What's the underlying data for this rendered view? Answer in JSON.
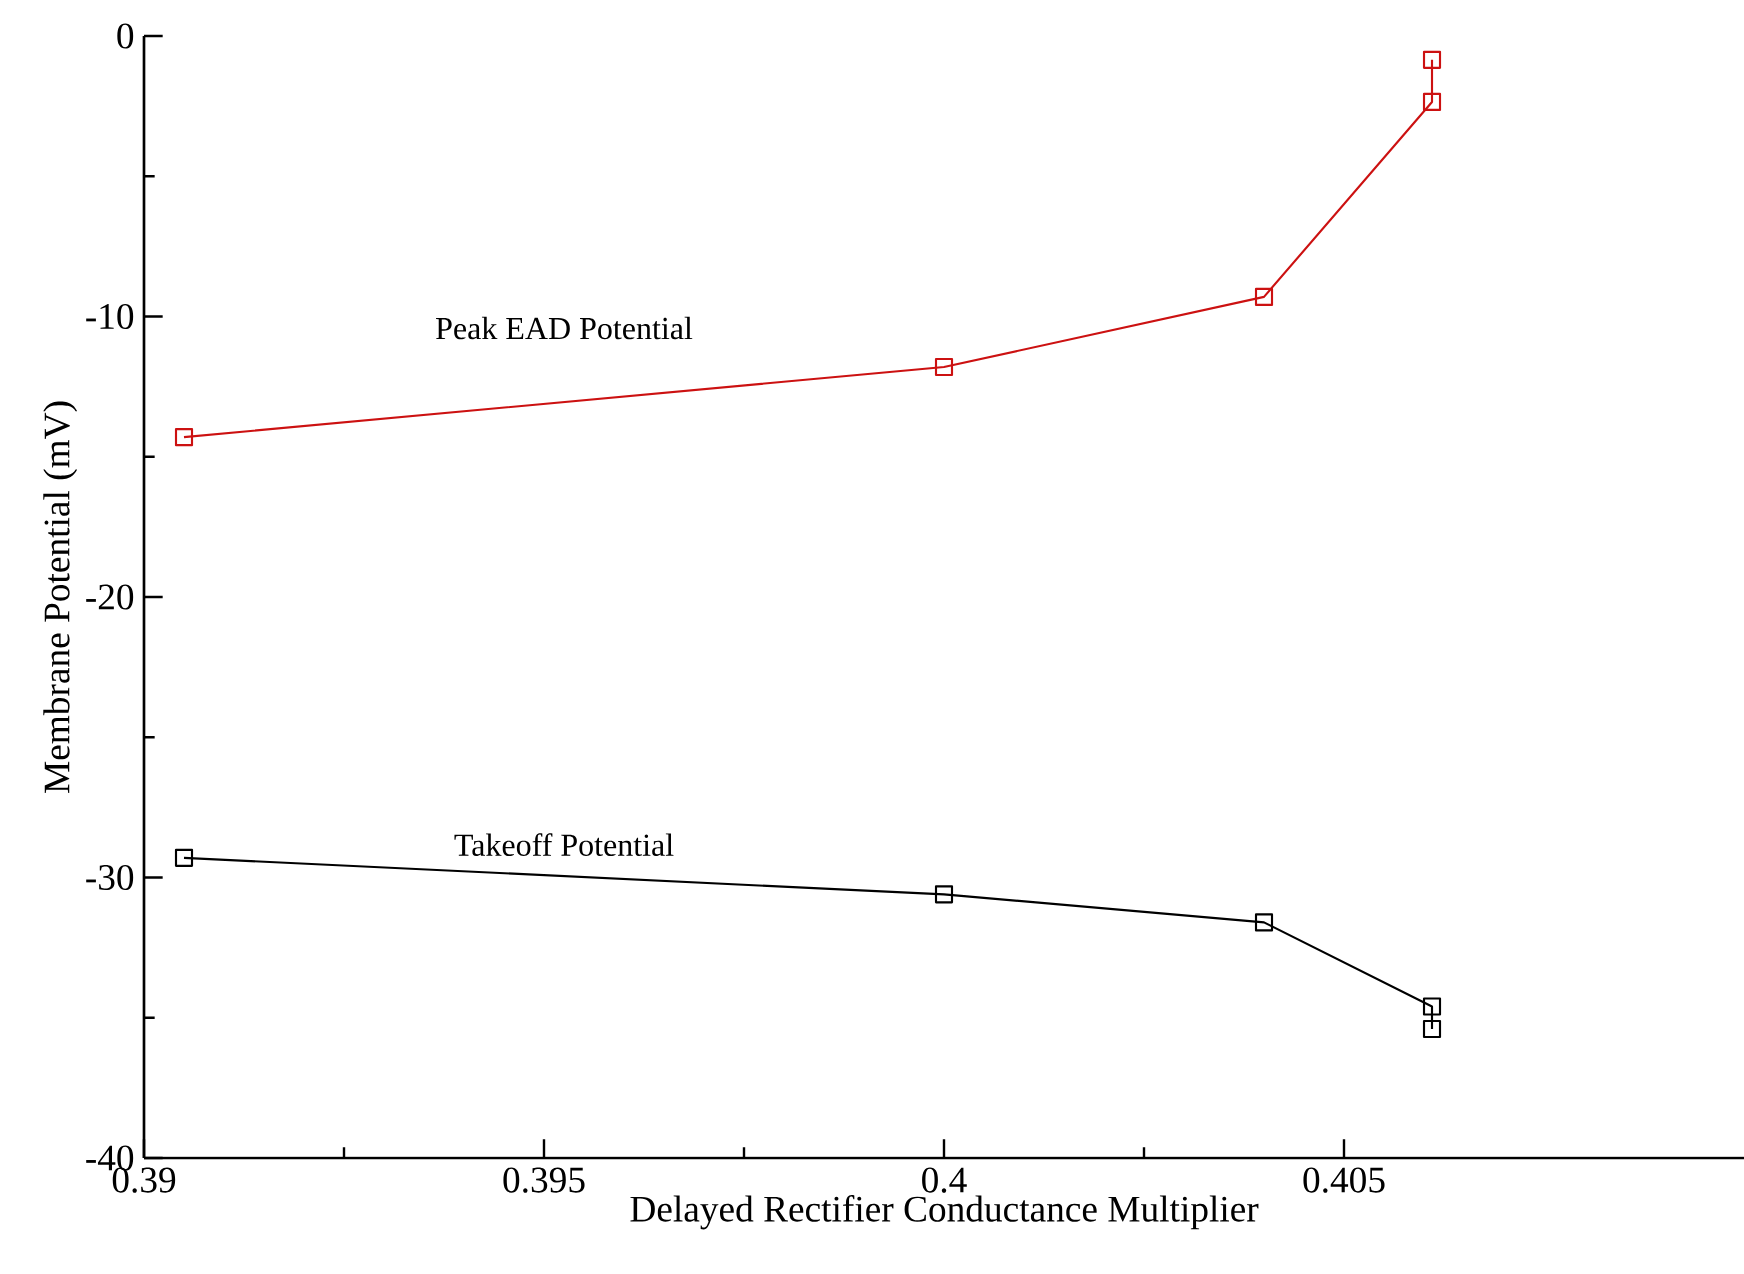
{
  "chart_data": {
    "type": "line",
    "xlabel": "Delayed Rectifier Conductance Multiplier",
    "ylabel": "Membrane Potential (mV)",
    "xlim": [
      0.39,
      0.41
    ],
    "xticks": [
      0.39,
      0.395,
      0.4,
      0.405
    ],
    "ylim": [
      -40,
      0
    ],
    "yticks": [
      -40,
      -30,
      -20,
      -10,
      0
    ],
    "marker": "square",
    "line_style": "solid",
    "series": [
      {
        "name": "Peak EAD Potential",
        "color": "#cc1111",
        "x": [
          0.3905,
          0.4,
          0.404,
          0.4061,
          0.4061
        ],
        "values": [
          -14.3,
          -11.8,
          -9.3,
          -2.35,
          -0.85
        ]
      },
      {
        "name": "Takeoff Potential",
        "color": "#000000",
        "x": [
          0.3905,
          0.4,
          0.404,
          0.4061,
          0.4061
        ],
        "values": [
          -29.3,
          -30.6,
          -31.6,
          -34.6,
          -35.4
        ]
      }
    ]
  }
}
